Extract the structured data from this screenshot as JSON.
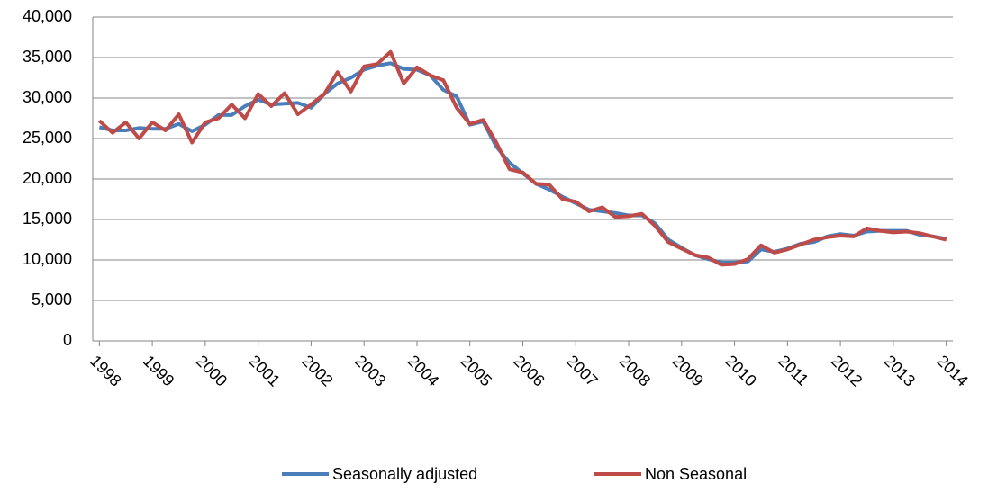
{
  "chart_data": {
    "type": "line",
    "categories": [
      "1998",
      null,
      null,
      null,
      "1999",
      null,
      null,
      null,
      "2000",
      null,
      null,
      null,
      "2001",
      null,
      null,
      null,
      "2002",
      null,
      null,
      null,
      "2003",
      null,
      null,
      null,
      "2004",
      null,
      null,
      null,
      "2005",
      null,
      null,
      null,
      "2006",
      null,
      null,
      null,
      "2007",
      null,
      null,
      null,
      "2008",
      null,
      null,
      null,
      "2009",
      null,
      null,
      null,
      "2010",
      null,
      null,
      null,
      "2011",
      null,
      null,
      null,
      "2012",
      null,
      null,
      null,
      "2013",
      null,
      null,
      null,
      "2014"
    ],
    "series": [
      {
        "name": "Seasonally adjusted",
        "color": "#4a7ebb",
        "values": [
          26400,
          26000,
          26000,
          26300,
          26200,
          26200,
          26800,
          25900,
          26700,
          27900,
          27900,
          29000,
          29800,
          29200,
          29300,
          29400,
          28800,
          30500,
          31800,
          32500,
          33500,
          34000,
          34300,
          33600,
          33500,
          32800,
          31000,
          30200,
          26700,
          27100,
          24000,
          22000,
          20700,
          19400,
          18700,
          17800,
          17000,
          16200,
          16000,
          15800,
          15500,
          15500,
          14500,
          12500,
          11500,
          10600,
          10100,
          9700,
          9700,
          9800,
          11300,
          11000,
          11400,
          12000,
          12200,
          12900,
          13200,
          13000,
          13500,
          13600,
          13600,
          13600,
          13100,
          12900,
          12600
        ]
      },
      {
        "name": "Non Seasonal",
        "color": "#be4b48",
        "values": [
          27200,
          25700,
          27000,
          25000,
          27000,
          26000,
          28000,
          24500,
          27000,
          27500,
          29200,
          27500,
          30500,
          29000,
          30600,
          28000,
          29200,
          30500,
          33200,
          30800,
          33900,
          34200,
          35700,
          31800,
          33800,
          32800,
          32200,
          28800,
          26800,
          27300,
          24500,
          21200,
          20800,
          19400,
          19300,
          17500,
          17200,
          16000,
          16500,
          15300,
          15400,
          15700,
          14200,
          12200,
          11400,
          10600,
          10300,
          9400,
          9500,
          10100,
          11800,
          10900,
          11300,
          11900,
          12500,
          12800,
          13000,
          12900,
          13900,
          13600,
          13400,
          13500,
          13300,
          12900,
          12500
        ]
      }
    ],
    "ylim": [
      0,
      40000
    ],
    "yticks": [
      0,
      {
        "value": 5000,
        "label": "5,000"
      },
      {
        "value": 10000,
        "label": "10,000"
      },
      {
        "value": 15000,
        "label": "15,000"
      },
      {
        "value": 20000,
        "label": "20,000"
      },
      {
        "value": 25000,
        "label": "25,000"
      },
      {
        "value": 30000,
        "label": "30,000"
      },
      {
        "value": 35000,
        "label": "35,000"
      },
      {
        "value": 40000,
        "label": "40,000"
      }
    ],
    "grid": true,
    "legend": "bottom"
  }
}
